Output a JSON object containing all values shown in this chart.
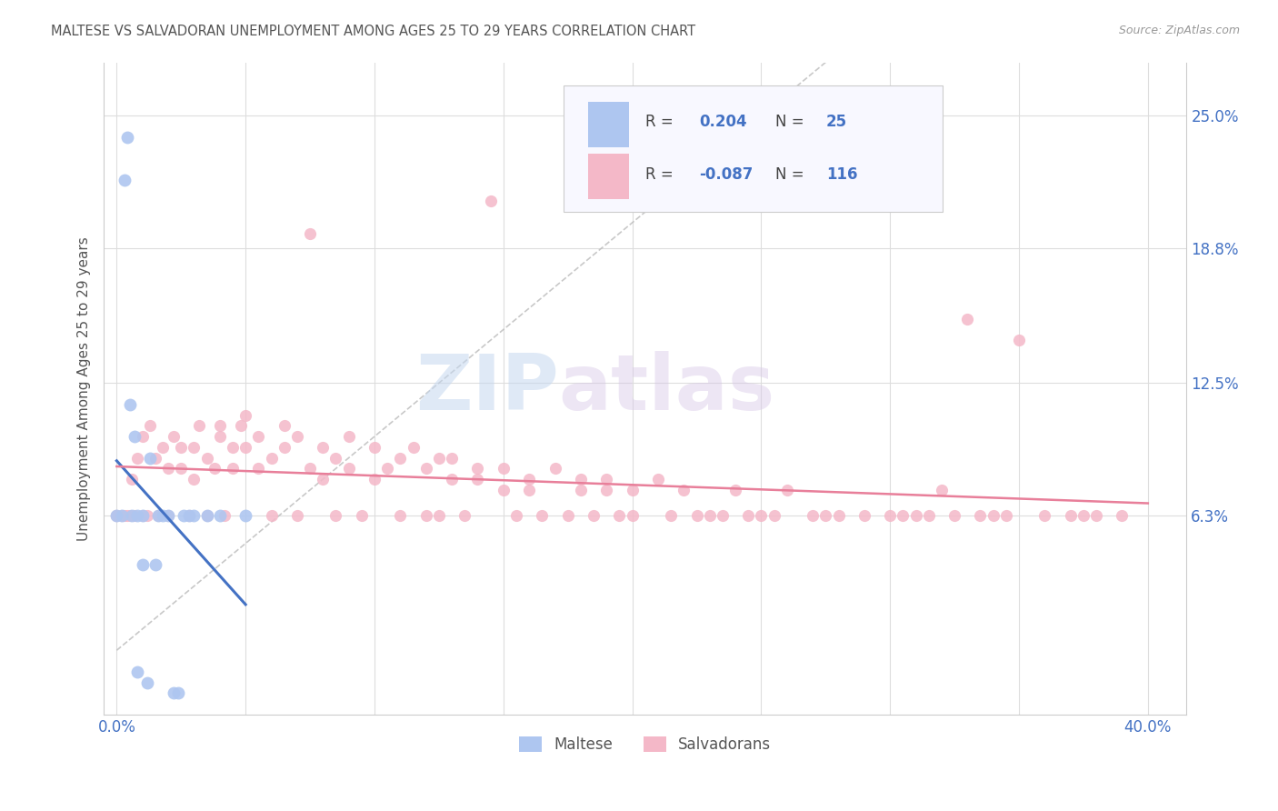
{
  "title": "MALTESE VS SALVADORAN UNEMPLOYMENT AMONG AGES 25 TO 29 YEARS CORRELATION CHART",
  "source": "Source: ZipAtlas.com",
  "ylabel": "Unemployment Among Ages 25 to 29 years",
  "xlim": [
    -0.005,
    0.415
  ],
  "ylim": [
    -0.03,
    0.275
  ],
  "xtick_vals": [
    0.0,
    0.05,
    0.1,
    0.15,
    0.2,
    0.25,
    0.3,
    0.35,
    0.4
  ],
  "xtick_labels_show": [
    "0.0%",
    "",
    "",
    "",
    "",
    "",
    "",
    "",
    "40.0%"
  ],
  "ytick_vals": [
    0.063,
    0.125,
    0.188,
    0.25
  ],
  "ytick_labels": [
    "6.3%",
    "12.5%",
    "18.8%",
    "25.0%"
  ],
  "maltese_color": "#aec6f0",
  "salvadoran_color": "#f4b8c8",
  "maltese_line_color": "#4472c4",
  "salvadoran_line_color": "#e87f9a",
  "legend_R_maltese": "0.204",
  "legend_N_maltese": "25",
  "legend_R_salvadoran": "-0.087",
  "legend_N_salvadoran": "116",
  "background_color": "#ffffff",
  "grid_color": "#dddddd",
  "title_color": "#555555",
  "axis_label_color": "#555555",
  "tick_label_color": "#4472c4",
  "watermark_zip_color": "#c5d8f0",
  "watermark_atlas_color": "#d8c8e8"
}
